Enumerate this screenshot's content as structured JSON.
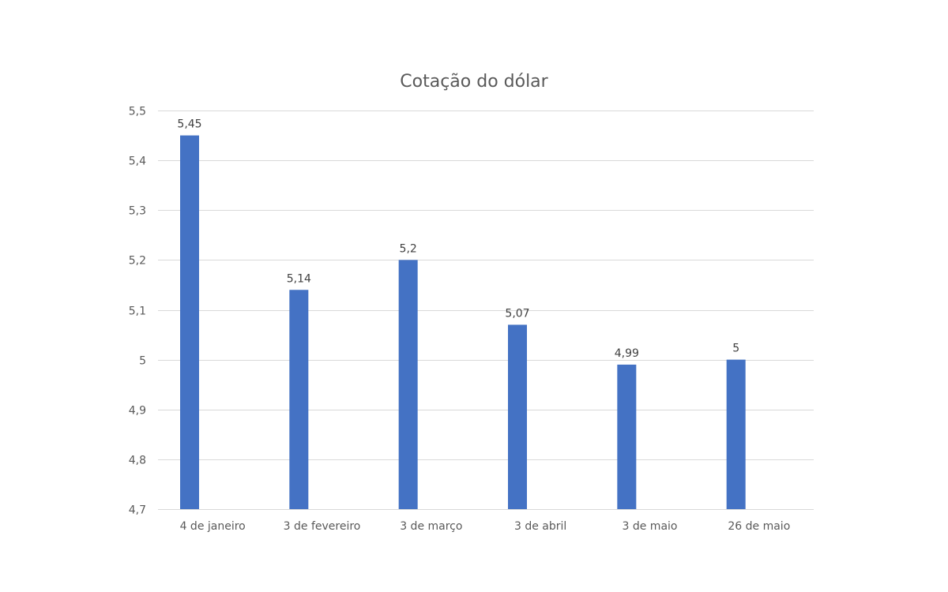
{
  "chart_data": {
    "type": "bar",
    "title": "Cotação do dólar",
    "categories": [
      "4 de janeiro",
      "3 de fevereiro",
      "3 de março",
      "3 de abril",
      "3 de maio",
      "26 de maio"
    ],
    "values": [
      5.45,
      5.14,
      5.2,
      5.07,
      4.99,
      5
    ],
    "data_labels": [
      "5,45",
      "5,14",
      "5,2",
      "5,07",
      "4,99",
      "5"
    ],
    "ylim": [
      4.7,
      5.5
    ],
    "yticks": [
      4.7,
      4.8,
      4.9,
      5,
      5.1,
      5.2,
      5.3,
      5.4,
      5.5
    ],
    "ytick_labels": [
      "4,7",
      "4,8",
      "4,9",
      "5",
      "5,1",
      "5,2",
      "5,3",
      "5,4",
      "5,5"
    ],
    "xlabel": "",
    "ylabel": "",
    "grid": true,
    "legend": "none",
    "bar_color": "#4472c4",
    "grid_color": "#d9d9d9",
    "text_color": "#595959"
  }
}
